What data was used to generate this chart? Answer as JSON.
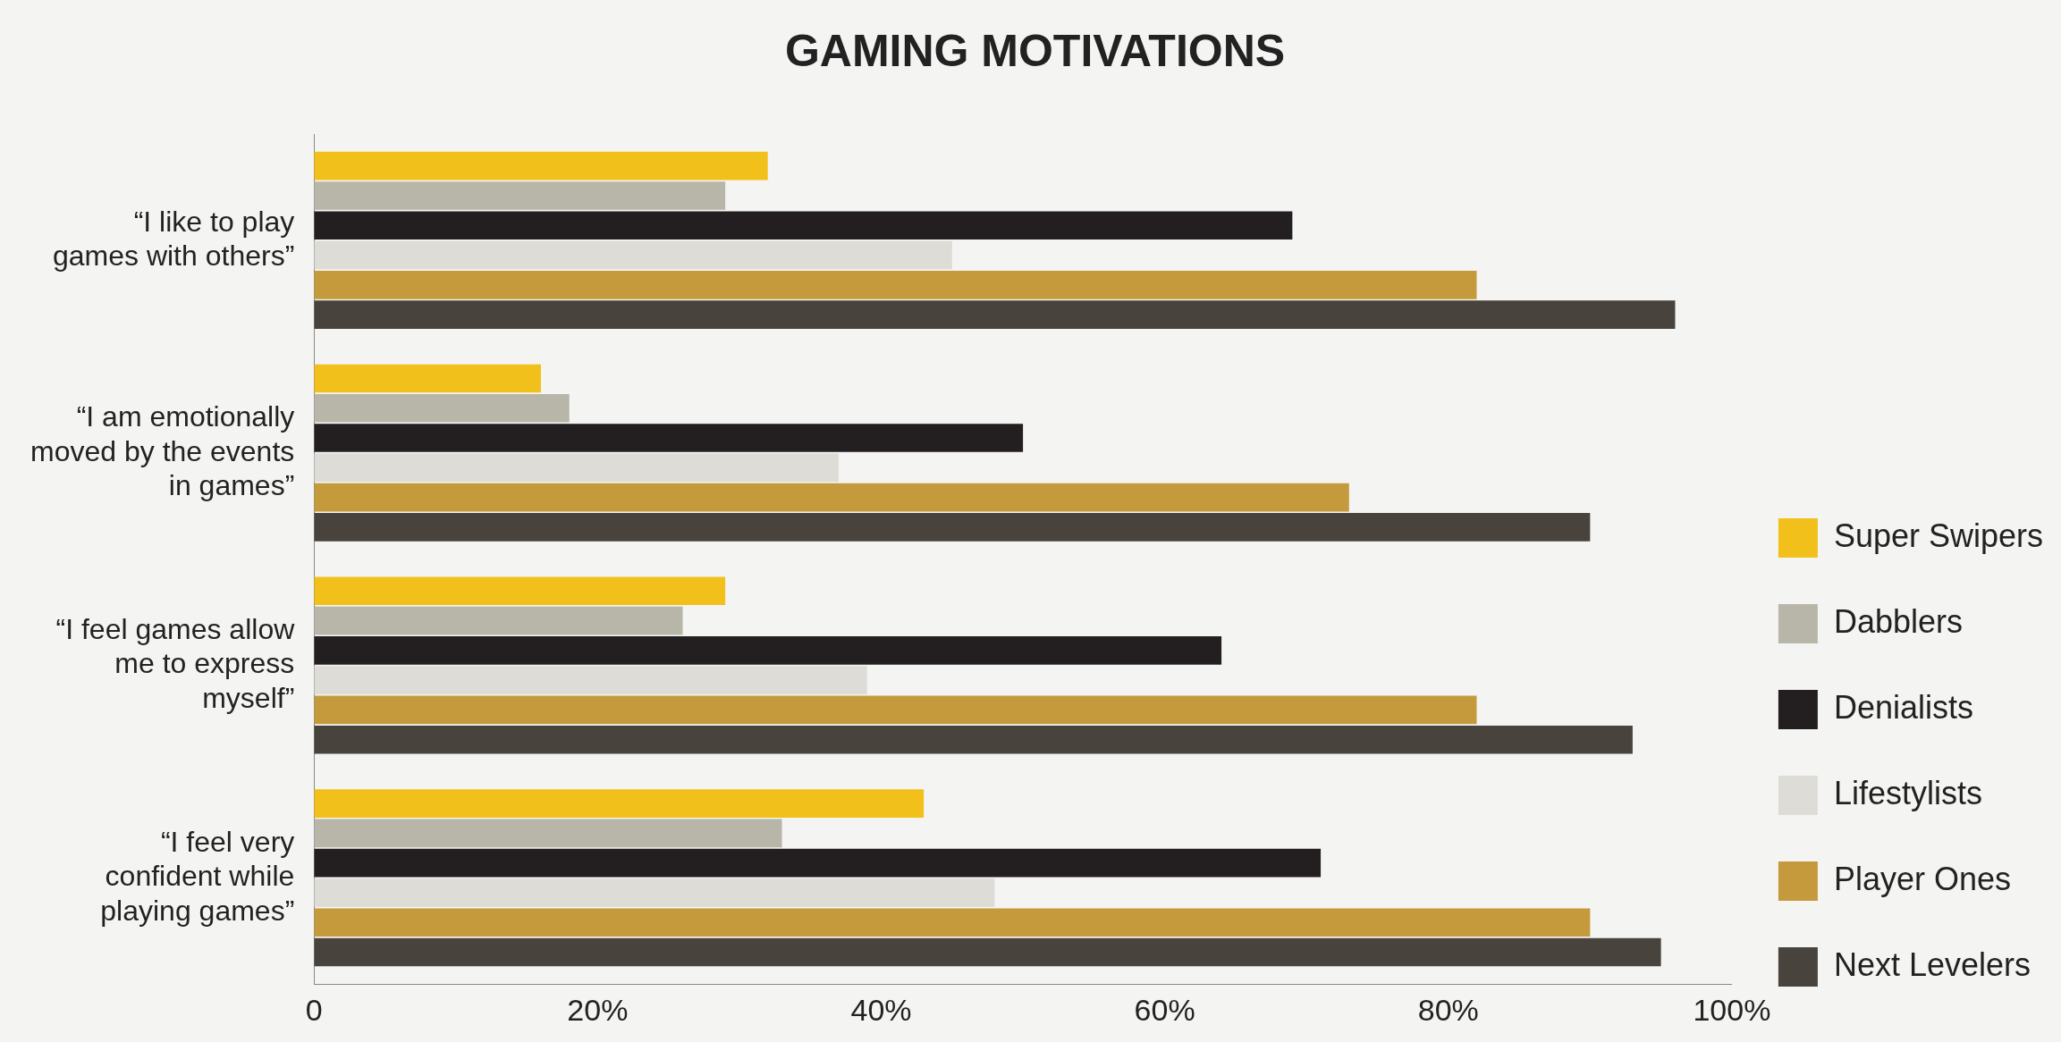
{
  "chart_data": {
    "type": "bar",
    "orientation": "horizontal",
    "title": "GAMING MOTIVATIONS",
    "categories": [
      "“I like to play games with others”",
      "“I am emotionally moved by the events in games”",
      "“I feel games allow me to express myself”",
      "“I feel very confident while playing games”"
    ],
    "series": [
      {
        "name": "Super Swipers",
        "color": "#f2c01a",
        "values": [
          32,
          16,
          29,
          43
        ]
      },
      {
        "name": "Dabblers",
        "color": "#b8b6a8",
        "values": [
          29,
          18,
          26,
          33
        ]
      },
      {
        "name": "Denialists",
        "color": "#231f20",
        "values": [
          69,
          50,
          64,
          71
        ]
      },
      {
        "name": "Lifestylists",
        "color": "#dddcd6",
        "values": [
          45,
          37,
          39,
          48
        ]
      },
      {
        "name": "Player Ones",
        "color": "#c49a3c",
        "values": [
          82,
          73,
          82,
          90
        ]
      },
      {
        "name": "Next Levelers",
        "color": "#48433c",
        "values": [
          96,
          90,
          93,
          95
        ]
      }
    ],
    "xlim": [
      0,
      100
    ],
    "xticks": [
      0,
      {
        "value": 20,
        "label": "20%"
      },
      {
        "value": 40,
        "label": "40%"
      },
      {
        "value": 60,
        "label": "60%"
      },
      {
        "value": 80,
        "label": "80%"
      },
      {
        "value": 100,
        "label": "100%"
      }
    ],
    "grid": false,
    "legend": "right"
  }
}
